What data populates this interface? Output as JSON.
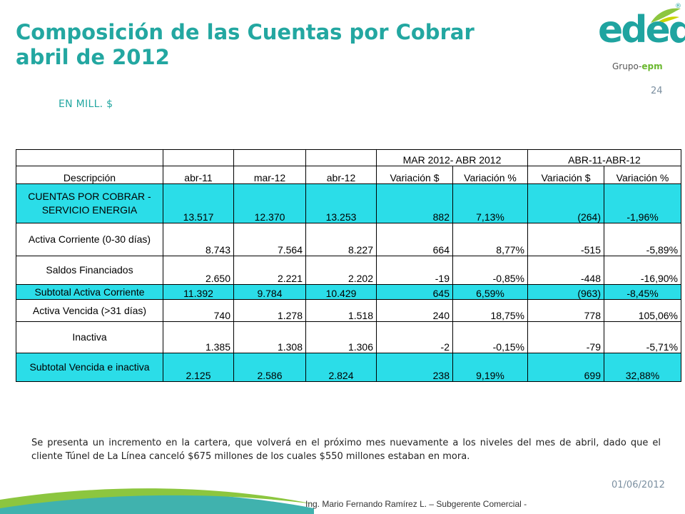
{
  "title": {
    "line1": "Composición de las Cuentas por Cobrar",
    "line2": "abril de 2012"
  },
  "subtitle": "EN MILL. $",
  "page_number": "24",
  "logo": {
    "wordmark": "edeq",
    "registered": "®",
    "group_prefix": "Grupo-",
    "group_brand": "epm"
  },
  "table": {
    "group_headers": [
      "MAR 2012- ABR 2012",
      "ABR-11-ABR-12"
    ],
    "columns": [
      "Descripción",
      "abr-11",
      "mar-12",
      "abr-12",
      "Variación $",
      "Variación %",
      "Variación $",
      "Variación %"
    ],
    "rows": [
      {
        "label": "CUENTAS POR COBRAR - SERVICIO ENERGIA",
        "values": [
          "13.517",
          "12.370",
          "13.253",
          "882",
          "7,13%",
          "(264)",
          "-1,96%"
        ]
      },
      {
        "label": "Activa Corriente (0-30 días)",
        "values": [
          "8.743",
          "7.564",
          "8.227",
          "664",
          "8,77%",
          "-515",
          "-5,89%"
        ]
      },
      {
        "label": "Saldos Financiados",
        "values": [
          "2.650",
          "2.221",
          "2.202",
          "-19",
          "-0,85%",
          "-448",
          "-16,90%"
        ]
      },
      {
        "label": "Subtotal Activa Corriente",
        "values": [
          "11.392",
          "9.784",
          "10.429",
          "645",
          "6,59%",
          "(963)",
          "-8,45%"
        ]
      },
      {
        "label": "Activa Vencida (>31 días)",
        "values": [
          "740",
          "1.278",
          "1.518",
          "240",
          "18,75%",
          "778",
          "105,06%"
        ]
      },
      {
        "label": "Inactiva",
        "values": [
          "1.385",
          "1.308",
          "1.306",
          "-2",
          "-0,15%",
          "-79",
          "-5,71%"
        ]
      },
      {
        "label": "Subtotal Vencida e inactiva",
        "values": [
          "2.125",
          "2.586",
          "2.824",
          "238",
          "9,19%",
          "699",
          "32,88%"
        ]
      }
    ]
  },
  "note": "Se presenta un incremento en la cartera, que volverá en el próximo mes nuevamente a los niveles del mes de abril, dado que el cliente Túnel de La Línea canceló $675 millones de los cuales $550 millones estaban en mora.",
  "date": "01/06/2012",
  "footer": "Ing. Mario Fernando Ramírez L. – Subgerente Comercial -",
  "colors": {
    "title": "#23a7a1",
    "highlight": "#2bdde8",
    "brand_green": "#6ab82e"
  }
}
